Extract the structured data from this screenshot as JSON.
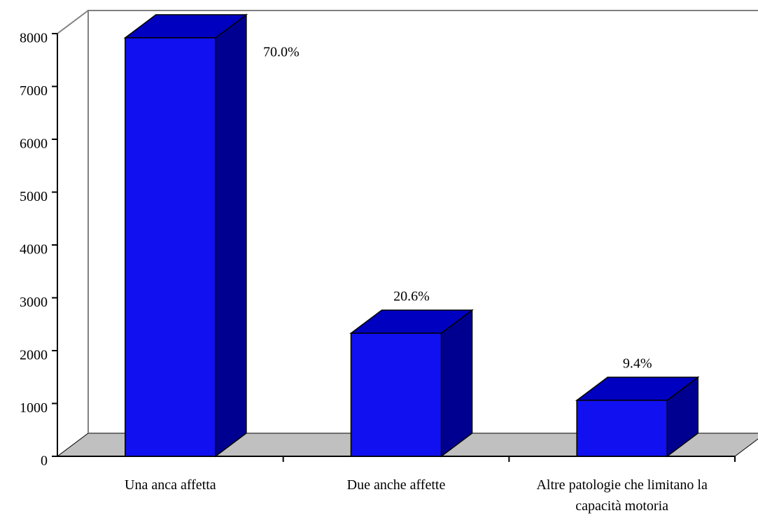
{
  "chart_data": {
    "type": "bar3d",
    "categories": [
      "Una anca affetta",
      "Due anche affette",
      "Altre patologie che limitano la capacità motoria"
    ],
    "values": [
      7920,
      2330,
      1060
    ],
    "annotations": [
      "70.0%",
      "20.6%",
      "9.4%"
    ],
    "color": "#1010f0",
    "ylim": [
      0,
      8000
    ],
    "yticks": [
      0,
      1000,
      2000,
      3000,
      4000,
      5000,
      6000,
      7000,
      8000
    ]
  }
}
